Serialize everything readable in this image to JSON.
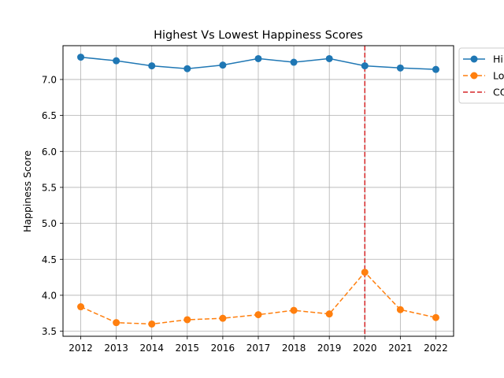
{
  "chart_data": {
    "type": "line",
    "title": "Highest Vs Lowest Happiness Scores",
    "xlabel": "",
    "ylabel": "Happiness Score",
    "x": [
      2012,
      2013,
      2014,
      2015,
      2016,
      2017,
      2018,
      2019,
      2020,
      2021,
      2022
    ],
    "xticks": [
      "2012",
      "2013",
      "2014",
      "2015",
      "2016",
      "2017",
      "2018",
      "2019",
      "2020",
      "2021",
      "2022"
    ],
    "yticks": [
      "3.5",
      "4.0",
      "4.5",
      "5.0",
      "5.5",
      "6.0",
      "6.5",
      "7.0"
    ],
    "ylim": [
      3.43,
      7.47
    ],
    "grid": true,
    "legend_position": "outside-top-right",
    "series": [
      {
        "name": "Hi",
        "color": "#1f77b4",
        "style": "solid",
        "marker": "circle",
        "values": [
          7.31,
          7.26,
          7.19,
          7.15,
          7.2,
          7.29,
          7.24,
          7.29,
          7.19,
          7.16,
          7.14
        ]
      },
      {
        "name": "Lo",
        "color": "#ff7f0e",
        "style": "dashed",
        "marker": "circle",
        "values": [
          3.84,
          3.62,
          3.6,
          3.66,
          3.68,
          3.73,
          3.79,
          3.74,
          4.32,
          3.8,
          3.69
        ]
      }
    ],
    "vline": {
      "x": 2020,
      "name": "CO",
      "color": "#d62728",
      "style": "dashed"
    }
  }
}
